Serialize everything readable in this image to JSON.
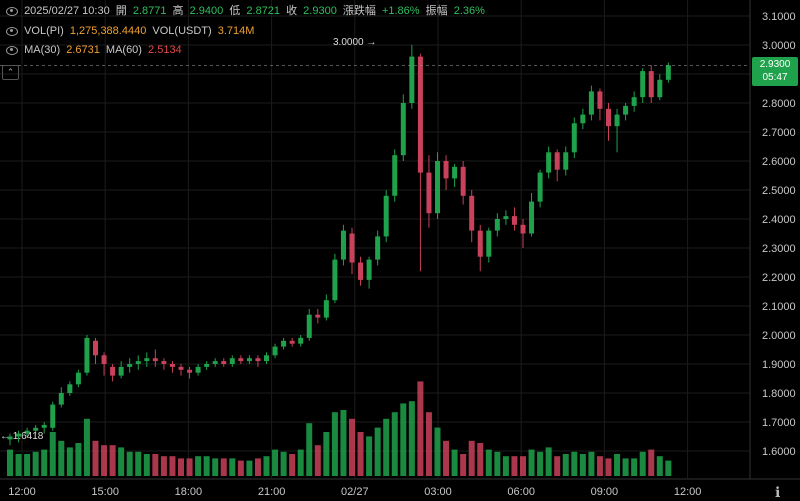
{
  "header": {
    "date_time": "2025/02/27 10:30",
    "open_label": "開",
    "open_value": "2.8771",
    "high_label": "高",
    "high_value": "2.9400",
    "low_label": "低",
    "low_value": "2.8721",
    "close_label": "收",
    "close_value": "2.9300",
    "change_label": "漲跌幅",
    "change_value": "+1.86%",
    "amplitude_label": "振幅",
    "amplitude_value": "2.36%"
  },
  "volume_legend": {
    "vol_pi_label": "VOL(PI)",
    "vol_pi_value": "1,275,388.4440",
    "vol_usdt_label": "VOL(USDT)",
    "vol_usdt_value": "3.714M"
  },
  "ma_legend": {
    "ma30_label": "MA(30)",
    "ma30_value": "2.6731",
    "ma60_label": "MA(60)",
    "ma60_value": "2.5134"
  },
  "price_tag": {
    "price": "2.9300",
    "countdown": "05:47"
  },
  "high_marker": "3.0000",
  "low_marker": "1.6418",
  "colors": {
    "up": "#1fa24b",
    "down": "#c9415b",
    "grid": "#1c1c1c",
    "background": "#000000"
  },
  "icons": {
    "header_left": "eye-icon",
    "collapse": "chevron-up-icon",
    "axis_settings": "cursor-icon"
  },
  "chart_data": {
    "type": "candlestick",
    "y_ticks": [
      "3.1000",
      "3.0000",
      "2.9000",
      "2.8000",
      "2.7000",
      "2.6000",
      "2.5000",
      "2.4000",
      "2.3000",
      "2.2000",
      "2.1000",
      "2.0000",
      "1.9000",
      "1.8000",
      "1.7000",
      "1.6000"
    ],
    "x_ticks": [
      "12:00",
      "15:00",
      "18:00",
      "21:00",
      "02/27",
      "03:00",
      "06:00",
      "09:00",
      "12:00"
    ],
    "ylim": [
      1.55,
      3.12
    ],
    "candles": [
      [
        1.64,
        1.65,
        1.62,
        1.66,
        1.2
      ],
      [
        1.65,
        1.66,
        1.63,
        1.67,
        1.0
      ],
      [
        1.66,
        1.67,
        1.65,
        1.68,
        1.0
      ],
      [
        1.67,
        1.68,
        1.66,
        1.69,
        1.1
      ],
      [
        1.68,
        1.69,
        1.66,
        1.7,
        1.2
      ],
      [
        1.68,
        1.76,
        1.67,
        1.77,
        2.0
      ],
      [
        1.76,
        1.8,
        1.75,
        1.82,
        1.6
      ],
      [
        1.8,
        1.83,
        1.79,
        1.84,
        1.3
      ],
      [
        1.83,
        1.87,
        1.82,
        1.88,
        1.5
      ],
      [
        1.87,
        1.99,
        1.86,
        2.0,
        2.6
      ],
      [
        1.98,
        1.93,
        1.9,
        1.99,
        1.6
      ],
      [
        1.93,
        1.9,
        1.86,
        1.94,
        1.4
      ],
      [
        1.89,
        1.86,
        1.84,
        1.9,
        1.4
      ],
      [
        1.86,
        1.89,
        1.85,
        1.91,
        1.3
      ],
      [
        1.89,
        1.9,
        1.87,
        1.92,
        1.1
      ],
      [
        1.9,
        1.91,
        1.88,
        1.93,
        1.1
      ],
      [
        1.91,
        1.92,
        1.89,
        1.94,
        1.0
      ],
      [
        1.92,
        1.91,
        1.89,
        1.95,
        1.0
      ],
      [
        1.91,
        1.9,
        1.88,
        1.92,
        0.9
      ],
      [
        1.9,
        1.89,
        1.87,
        1.91,
        0.9
      ],
      [
        1.89,
        1.88,
        1.86,
        1.9,
        0.8
      ],
      [
        1.88,
        1.87,
        1.85,
        1.89,
        0.8
      ],
      [
        1.87,
        1.89,
        1.86,
        1.9,
        0.9
      ],
      [
        1.89,
        1.9,
        1.88,
        1.91,
        0.9
      ],
      [
        1.9,
        1.91,
        1.89,
        1.92,
        0.8
      ],
      [
        1.91,
        1.9,
        1.89,
        1.92,
        0.8
      ],
      [
        1.9,
        1.92,
        1.89,
        1.93,
        0.8
      ],
      [
        1.92,
        1.91,
        1.9,
        1.93,
        0.7
      ],
      [
        1.91,
        1.92,
        1.9,
        1.93,
        0.7
      ],
      [
        1.92,
        1.91,
        1.89,
        1.93,
        0.8
      ],
      [
        1.91,
        1.93,
        1.9,
        1.94,
        0.9
      ],
      [
        1.93,
        1.96,
        1.92,
        1.97,
        1.2
      ],
      [
        1.96,
        1.98,
        1.95,
        1.99,
        1.1
      ],
      [
        1.98,
        1.97,
        1.96,
        1.99,
        1.0
      ],
      [
        1.97,
        1.99,
        1.96,
        2.0,
        1.2
      ],
      [
        1.99,
        2.07,
        1.98,
        2.09,
        2.4
      ],
      [
        2.07,
        2.06,
        2.04,
        2.09,
        1.4
      ],
      [
        2.06,
        2.12,
        2.05,
        2.14,
        2.0
      ],
      [
        2.12,
        2.26,
        2.11,
        2.28,
        2.9
      ],
      [
        2.26,
        2.36,
        2.24,
        2.38,
        3.0
      ],
      [
        2.35,
        2.25,
        2.21,
        2.37,
        2.6
      ],
      [
        2.25,
        2.19,
        2.17,
        2.27,
        2.0
      ],
      [
        2.19,
        2.26,
        2.16,
        2.27,
        1.8
      ],
      [
        2.26,
        2.34,
        2.24,
        2.36,
        2.2
      ],
      [
        2.34,
        2.48,
        2.32,
        2.5,
        2.6
      ],
      [
        2.48,
        2.62,
        2.46,
        2.64,
        2.9
      ],
      [
        2.62,
        2.8,
        2.6,
        2.83,
        3.3
      ],
      [
        2.8,
        2.96,
        2.78,
        3.0,
        3.4
      ],
      [
        2.96,
        2.56,
        2.22,
        2.97,
        4.3
      ],
      [
        2.56,
        2.42,
        2.37,
        2.62,
        2.9
      ],
      [
        2.42,
        2.6,
        2.4,
        2.63,
        2.2
      ],
      [
        2.6,
        2.54,
        2.5,
        2.62,
        1.6
      ],
      [
        2.54,
        2.58,
        2.51,
        2.59,
        1.2
      ],
      [
        2.58,
        2.48,
        2.45,
        2.6,
        1.0
      ],
      [
        2.48,
        2.36,
        2.32,
        2.5,
        1.6
      ],
      [
        2.36,
        2.27,
        2.22,
        2.38,
        1.5
      ],
      [
        2.27,
        2.36,
        2.25,
        2.37,
        1.2
      ],
      [
        2.36,
        2.4,
        2.34,
        2.42,
        1.1
      ],
      [
        2.4,
        2.41,
        2.38,
        2.43,
        0.9
      ],
      [
        2.41,
        2.38,
        2.36,
        2.44,
        0.9
      ],
      [
        2.38,
        2.35,
        2.3,
        2.4,
        0.9
      ],
      [
        2.35,
        2.46,
        2.34,
        2.49,
        1.2
      ],
      [
        2.46,
        2.56,
        2.44,
        2.57,
        1.1
      ],
      [
        2.56,
        2.63,
        2.54,
        2.65,
        1.3
      ],
      [
        2.63,
        2.57,
        2.53,
        2.64,
        0.9
      ],
      [
        2.57,
        2.63,
        2.55,
        2.65,
        1.0
      ],
      [
        2.63,
        2.73,
        2.61,
        2.75,
        1.1
      ],
      [
        2.73,
        2.76,
        2.71,
        2.78,
        1.0
      ],
      [
        2.76,
        2.84,
        2.74,
        2.86,
        1.1
      ],
      [
        2.84,
        2.78,
        2.74,
        2.85,
        0.9
      ],
      [
        2.78,
        2.72,
        2.67,
        2.8,
        0.8
      ],
      [
        2.72,
        2.76,
        2.63,
        2.78,
        1.0
      ],
      [
        2.76,
        2.79,
        2.74,
        2.8,
        0.8
      ],
      [
        2.79,
        2.82,
        2.77,
        2.84,
        0.8
      ],
      [
        2.82,
        2.91,
        2.8,
        2.92,
        1.1
      ],
      [
        2.91,
        2.82,
        2.8,
        2.93,
        1.2
      ],
      [
        2.82,
        2.88,
        2.81,
        2.9,
        0.9
      ],
      [
        2.88,
        2.93,
        2.87,
        2.94,
        0.7
      ]
    ]
  }
}
